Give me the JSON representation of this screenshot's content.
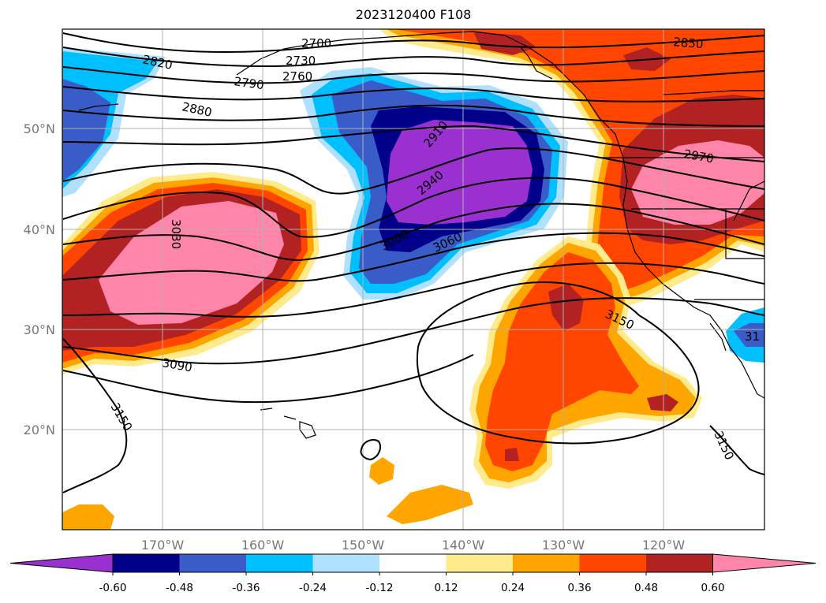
{
  "title": "2023120400 F108",
  "lon_labels": [
    "170°W",
    "160°W",
    "150°W",
    "140°W",
    "130°W",
    "120°W"
  ],
  "lat_labels": [
    "50°N",
    "40°N",
    "30°N",
    "20°N"
  ],
  "contour_labels": [
    "2700",
    "2730",
    "2760",
    "2790",
    "2820",
    "2850",
    "2880",
    "2910",
    "2940",
    "2970",
    "3000",
    "3030",
    "3060",
    "3090",
    "3150",
    "3150",
    "3150",
    "31"
  ],
  "colorbar": {
    "colors": [
      "#9b30d0",
      "#00008b",
      "#3a5cc8",
      "#00bfff",
      "#afe1ff",
      "#ffffff",
      "#ffeb8c",
      "#ffa500",
      "#ff4500",
      "#b22222",
      "#ff85aa"
    ],
    "tick_labels": [
      "-0.60",
      "-0.48",
      "-0.36",
      "-0.24",
      "-0.12",
      "0.12",
      "0.24",
      "0.36",
      "0.48",
      "0.60"
    ]
  },
  "palette": {
    "purple": "#9b30d0",
    "navy": "#00008b",
    "blue": "#3a5cc8",
    "cyan": "#00bfff",
    "lightblue": "#afe1ff",
    "yellow": "#ffeb8c",
    "orange": "#ffa500",
    "redorange": "#ff4500",
    "darkred": "#b22222",
    "pink": "#ff85aa"
  }
}
